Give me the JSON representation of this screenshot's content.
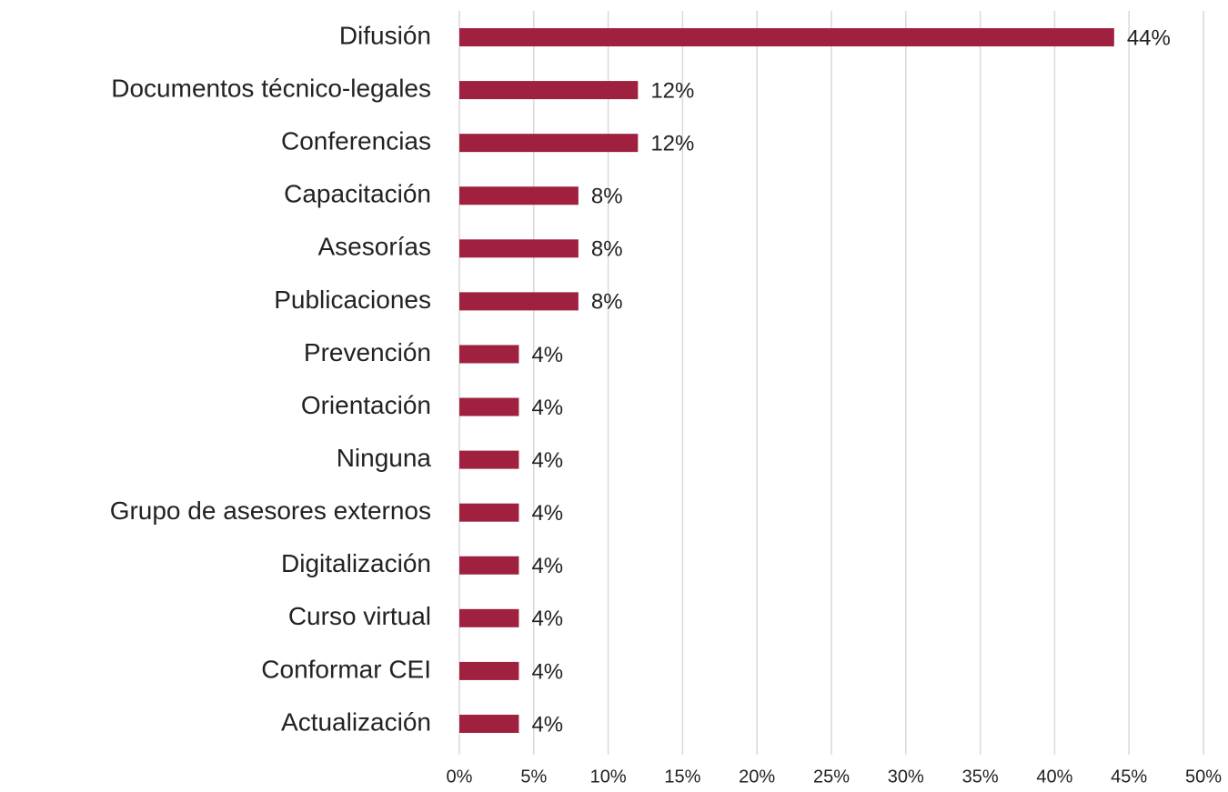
{
  "chart_data": {
    "type": "bar",
    "orientation": "horizontal",
    "categories": [
      "Difusión",
      "Documentos técnico-legales",
      "Conferencias",
      "Capacitación",
      "Asesorías",
      "Publicaciones",
      "Prevención",
      "Orientación",
      "Ninguna",
      "Grupo de asesores externos",
      "Digitalización",
      "Curso virtual",
      "Conformar CEI",
      "Actualización"
    ],
    "values": [
      44,
      12,
      12,
      8,
      8,
      8,
      4,
      4,
      4,
      4,
      4,
      4,
      4,
      4
    ],
    "value_labels": [
      "44%",
      "12%",
      "12%",
      "8%",
      "8%",
      "8%",
      "4%",
      "4%",
      "4%",
      "4%",
      "4%",
      "4%",
      "4%",
      "4%"
    ],
    "color": "#a0203f",
    "xlim": [
      0,
      50
    ],
    "xticks": [
      {
        "value": 0,
        "label": "0%"
      },
      {
        "value": 5,
        "label": "5%"
      },
      {
        "value": 10,
        "label": "10%"
      },
      {
        "value": 15,
        "label": "15%"
      },
      {
        "value": 20,
        "label": "20%"
      },
      {
        "value": 25,
        "label": "25%"
      },
      {
        "value": 30,
        "label": "30%"
      },
      {
        "value": 35,
        "label": "35%"
      },
      {
        "value": 40,
        "label": "40%"
      },
      {
        "value": 45,
        "label": "45%"
      },
      {
        "value": 50,
        "label": "50%"
      }
    ],
    "grid": true
  }
}
